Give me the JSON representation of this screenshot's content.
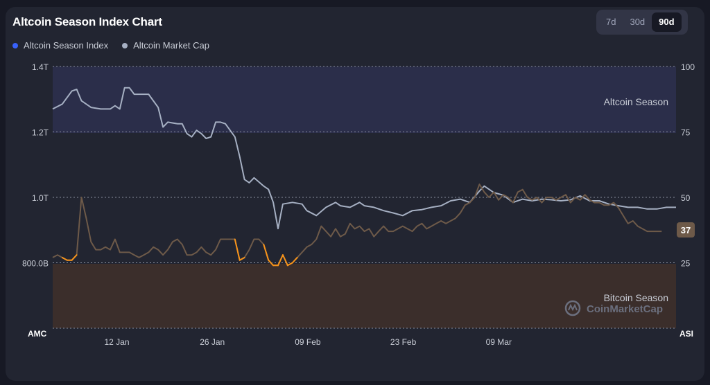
{
  "header": {
    "title": "Altcoin Season Index Chart",
    "ranges": [
      "7d",
      "30d",
      "90d"
    ],
    "active_range": "90d"
  },
  "legend": [
    {
      "label": "Altcoin Season Index",
      "color": "#3861fb"
    },
    {
      "label": "Altcoin Market Cap",
      "color": "#a6b0c3"
    }
  ],
  "zones": {
    "altcoin_label": "Altcoin Season",
    "bitcoin_label": "Bitcoin Season",
    "altcoin_color": "#2b2e4a",
    "bitcoin_color": "#3b2e2b"
  },
  "watermark": "CoinMarketCap",
  "current_value_badge": "37",
  "colors": {
    "market_cap_line": "#a6b0c3",
    "index_line_above": "#6e5a49",
    "index_line_below": "#f7931a",
    "badge_bg": "#6e5a49"
  },
  "chart_data": {
    "type": "line",
    "title": "Altcoin Season Index Chart",
    "xlabel": "",
    "left_axis_label": "AMC",
    "right_axis_label": "ASI",
    "left_ticks": [
      "1.4T",
      "1.2T",
      "1.0T",
      "800.0B"
    ],
    "right_ticks": [
      "100",
      "75",
      "50",
      "25"
    ],
    "x_tick_labels": [
      "12 Jan",
      "26 Jan",
      "09 Feb",
      "23 Feb",
      "09 Mar"
    ],
    "x_tick_days": [
      8,
      22,
      36,
      50,
      64
    ],
    "x_range_days": [
      -2,
      90
    ],
    "left_ylim_billion": [
      700,
      1400
    ],
    "right_ylim": [
      0,
      100
    ],
    "grid": "dotted horizontal",
    "legend_position": "top-left",
    "series": [
      {
        "name": "Altcoin Market Cap",
        "axis": "left",
        "points": [
          [
            -2,
            1285
          ],
          [
            0,
            1300
          ],
          [
            2,
            1340
          ],
          [
            3,
            1345
          ],
          [
            4,
            1310
          ],
          [
            6,
            1290
          ],
          [
            8,
            1285
          ],
          [
            10,
            1285
          ],
          [
            11,
            1295
          ],
          [
            12,
            1285
          ],
          [
            13,
            1350
          ],
          [
            14,
            1350
          ],
          [
            15,
            1330
          ],
          [
            17,
            1330
          ],
          [
            18,
            1330
          ],
          [
            20,
            1290
          ],
          [
            21,
            1230
          ],
          [
            22,
            1245
          ],
          [
            24,
            1240
          ],
          [
            25,
            1240
          ],
          [
            26,
            1210
          ],
          [
            27,
            1200
          ],
          [
            28,
            1220
          ],
          [
            29,
            1210
          ],
          [
            30,
            1195
          ],
          [
            31,
            1200
          ],
          [
            32,
            1245
          ],
          [
            33,
            1245
          ],
          [
            34,
            1240
          ],
          [
            36,
            1200
          ],
          [
            37,
            1140
          ],
          [
            38,
            1070
          ],
          [
            39,
            1060
          ],
          [
            40,
            1075
          ],
          [
            42,
            1050
          ],
          [
            43,
            1040
          ],
          [
            44,
            1000
          ],
          [
            45,
            920
          ],
          [
            46,
            995
          ],
          [
            48,
            1000
          ],
          [
            50,
            995
          ],
          [
            51,
            975
          ],
          [
            53,
            960
          ],
          [
            55,
            985
          ],
          [
            57,
            1000
          ],
          [
            58,
            990
          ],
          [
            60,
            985
          ],
          [
            62,
            1000
          ],
          [
            63,
            990
          ],
          [
            65,
            985
          ],
          [
            67,
            975
          ],
          [
            69,
            968
          ],
          [
            71,
            960
          ],
          [
            73,
            975
          ],
          [
            75,
            978
          ],
          [
            77,
            985
          ],
          [
            79,
            990
          ],
          [
            81,
            1005
          ],
          [
            83,
            1010
          ],
          [
            85,
            1000
          ],
          [
            87,
            1035
          ],
          [
            88,
            1050
          ],
          [
            90,
            1030
          ],
          [
            92,
            1022
          ],
          [
            94,
            1000
          ],
          [
            96,
            1010
          ],
          [
            98,
            1005
          ],
          [
            100,
            1010
          ],
          [
            102,
            1008
          ],
          [
            104,
            1005
          ],
          [
            106,
            1008
          ],
          [
            108,
            1020
          ],
          [
            110,
            1005
          ],
          [
            112,
            1005
          ],
          [
            114,
            995
          ],
          [
            116,
            990
          ],
          [
            118,
            985
          ],
          [
            120,
            985
          ],
          [
            122,
            980
          ],
          [
            124,
            980
          ],
          [
            126,
            985
          ],
          [
            128,
            985
          ]
        ]
      },
      {
        "name": "Altcoin Season Index",
        "axis": "right",
        "points": [
          [
            -2,
            27
          ],
          [
            -1,
            28
          ],
          [
            0,
            27
          ],
          [
            1,
            26
          ],
          [
            2,
            26
          ],
          [
            3,
            28
          ],
          [
            4,
            50
          ],
          [
            5,
            42
          ],
          [
            6,
            33
          ],
          [
            7,
            30
          ],
          [
            8,
            30
          ],
          [
            9,
            31
          ],
          [
            10,
            30
          ],
          [
            11,
            34
          ],
          [
            12,
            29
          ],
          [
            13,
            29
          ],
          [
            14,
            29
          ],
          [
            15,
            28
          ],
          [
            16,
            27
          ],
          [
            17,
            28
          ],
          [
            18,
            29
          ],
          [
            19,
            31
          ],
          [
            20,
            30
          ],
          [
            21,
            28
          ],
          [
            22,
            30
          ],
          [
            23,
            33
          ],
          [
            24,
            34
          ],
          [
            25,
            32
          ],
          [
            26,
            28
          ],
          [
            27,
            28
          ],
          [
            28,
            29
          ],
          [
            29,
            31
          ],
          [
            30,
            29
          ],
          [
            31,
            28
          ],
          [
            32,
            30
          ],
          [
            33,
            34
          ],
          [
            34,
            34
          ],
          [
            35,
            34
          ],
          [
            36,
            34
          ],
          [
            37,
            26
          ],
          [
            38,
            27
          ],
          [
            39,
            30
          ],
          [
            40,
            34
          ],
          [
            41,
            34
          ],
          [
            42,
            32
          ],
          [
            43,
            26
          ],
          [
            44,
            24
          ],
          [
            45,
            24
          ],
          [
            46,
            28
          ],
          [
            47,
            24
          ],
          [
            48,
            25
          ],
          [
            49,
            27
          ],
          [
            50,
            29
          ],
          [
            51,
            31
          ],
          [
            52,
            32
          ],
          [
            53,
            34
          ],
          [
            54,
            39
          ],
          [
            55,
            37
          ],
          [
            56,
            35
          ],
          [
            57,
            38
          ],
          [
            58,
            35
          ],
          [
            59,
            36
          ],
          [
            60,
            40
          ],
          [
            61,
            38
          ],
          [
            62,
            39
          ],
          [
            63,
            37
          ],
          [
            64,
            38
          ],
          [
            65,
            35
          ],
          [
            66,
            37
          ],
          [
            67,
            39
          ],
          [
            68,
            37
          ],
          [
            69,
            37
          ],
          [
            70,
            38
          ],
          [
            71,
            39
          ],
          [
            72,
            38
          ],
          [
            73,
            37
          ],
          [
            74,
            39
          ],
          [
            75,
            40
          ],
          [
            76,
            38
          ],
          [
            77,
            39
          ],
          [
            78,
            40
          ],
          [
            79,
            41
          ],
          [
            80,
            40
          ],
          [
            81,
            41
          ],
          [
            82,
            42
          ],
          [
            83,
            44
          ],
          [
            84,
            47
          ],
          [
            85,
            48
          ],
          [
            86,
            50
          ],
          [
            87,
            55
          ],
          [
            88,
            52
          ],
          [
            89,
            50
          ],
          [
            90,
            52
          ],
          [
            91,
            49
          ],
          [
            92,
            51
          ],
          [
            93,
            50
          ],
          [
            94,
            48
          ],
          [
            95,
            52
          ],
          [
            96,
            53
          ],
          [
            97,
            50
          ],
          [
            98,
            49
          ],
          [
            99,
            50
          ],
          [
            100,
            48
          ],
          [
            101,
            50
          ],
          [
            102,
            50
          ],
          [
            103,
            49
          ],
          [
            104,
            50
          ],
          [
            105,
            51
          ],
          [
            106,
            48
          ],
          [
            107,
            50
          ],
          [
            108,
            49
          ],
          [
            109,
            51
          ],
          [
            110,
            49
          ],
          [
            111,
            48
          ],
          [
            112,
            48
          ],
          [
            113,
            47
          ],
          [
            114,
            47
          ],
          [
            115,
            48
          ],
          [
            116,
            46
          ],
          [
            117,
            43
          ],
          [
            118,
            40
          ],
          [
            119,
            41
          ],
          [
            120,
            39
          ],
          [
            121,
            38
          ],
          [
            122,
            37
          ],
          [
            123,
            37
          ],
          [
            124,
            37
          ],
          [
            125,
            37
          ]
        ]
      }
    ]
  }
}
